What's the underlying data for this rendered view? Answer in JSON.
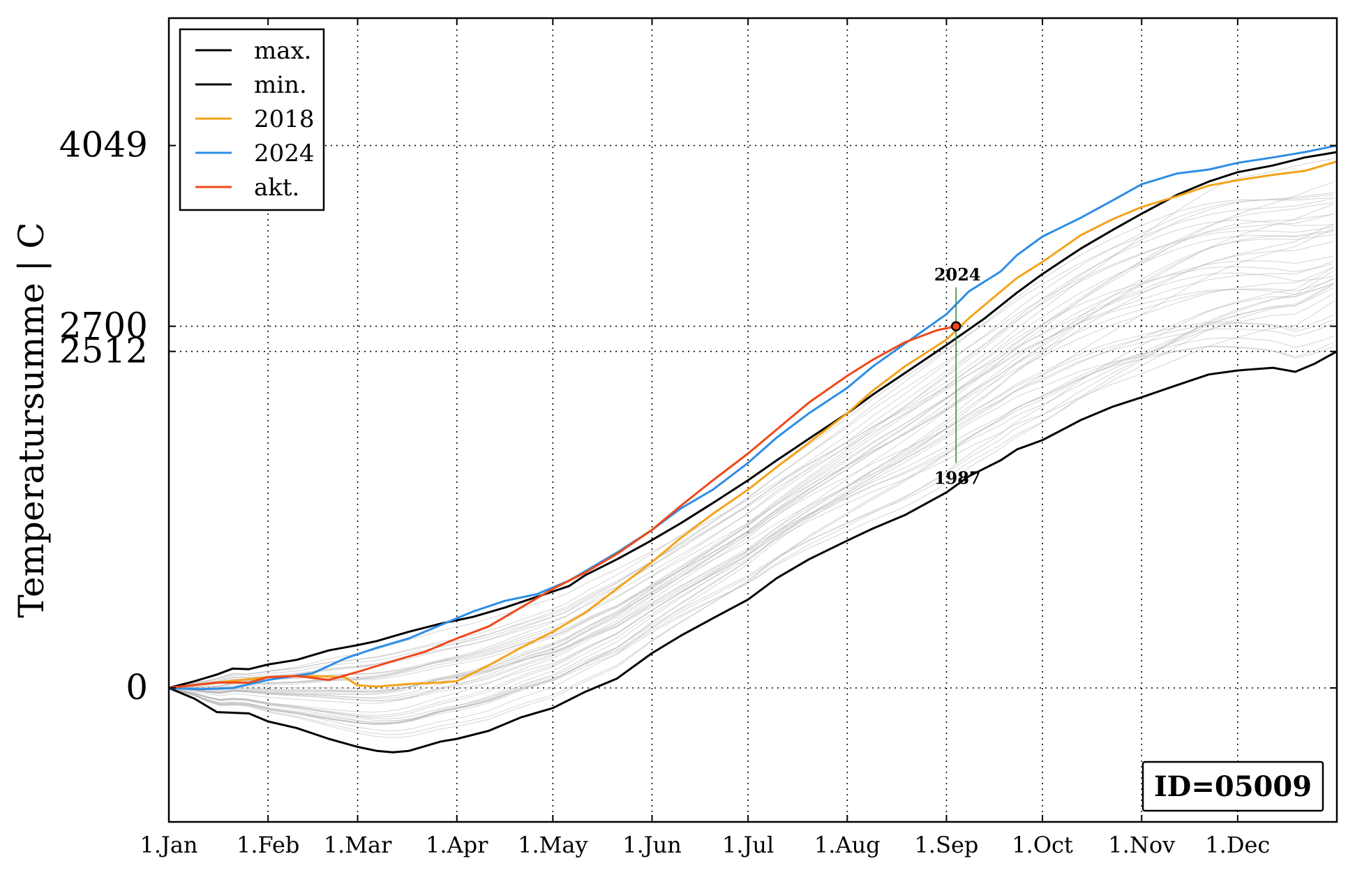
{
  "chart_data": {
    "type": "line",
    "title": "",
    "ylabel": "Temperatursumme | C",
    "xlabel": "",
    "x_tick_labels": [
      "1.Jan",
      "1.Feb",
      "1.Mar",
      "1.Apr",
      "1.May",
      "1.Jun",
      "1.Jul",
      "1.Aug",
      "1.Sep",
      "1.Oct",
      "1.Nov",
      "1.Dec"
    ],
    "x_tick_days": [
      0,
      31,
      59,
      90,
      120,
      151,
      181,
      212,
      243,
      273,
      304,
      334
    ],
    "xlim": [
      0,
      365
    ],
    "ylim": [
      -1000,
      5000
    ],
    "y_ticks": [
      0,
      2512,
      2700,
      4049
    ],
    "y_tick_labels": [
      "0",
      "2512",
      "2700",
      "4049"
    ],
    "grid": true,
    "legend_position": "top-left",
    "legend": [
      {
        "label": "max.",
        "color": "#000000"
      },
      {
        "label": "min.",
        "color": "#000000"
      },
      {
        "label": "2018",
        "color": "#f5a31a"
      },
      {
        "label": "2024",
        "color": "#2e8de6"
      },
      {
        "label": "akt.",
        "color": "#f0481a"
      }
    ],
    "series": [
      {
        "name": "max.",
        "color": "#000000",
        "points": [
          [
            0,
            0
          ],
          [
            8,
            50
          ],
          [
            15,
            100
          ],
          [
            20,
            145
          ],
          [
            25,
            140
          ],
          [
            31,
            175
          ],
          [
            40,
            210
          ],
          [
            50,
            280
          ],
          [
            59,
            320
          ],
          [
            65,
            350
          ],
          [
            75,
            420
          ],
          [
            85,
            480
          ],
          [
            95,
            530
          ],
          [
            105,
            600
          ],
          [
            115,
            680
          ],
          [
            125,
            760
          ],
          [
            130,
            840
          ],
          [
            140,
            960
          ],
          [
            150,
            1090
          ],
          [
            160,
            1230
          ],
          [
            170,
            1380
          ],
          [
            181,
            1550
          ],
          [
            190,
            1700
          ],
          [
            200,
            1860
          ],
          [
            212,
            2050
          ],
          [
            220,
            2190
          ],
          [
            230,
            2350
          ],
          [
            243,
            2560
          ],
          [
            255,
            2760
          ],
          [
            265,
            2950
          ],
          [
            273,
            3090
          ],
          [
            285,
            3280
          ],
          [
            295,
            3420
          ],
          [
            304,
            3540
          ],
          [
            315,
            3680
          ],
          [
            325,
            3780
          ],
          [
            334,
            3850
          ],
          [
            345,
            3900
          ],
          [
            355,
            3960
          ],
          [
            365,
            4000
          ]
        ]
      },
      {
        "name": "min.",
        "color": "#000000",
        "points": [
          [
            0,
            0
          ],
          [
            8,
            -80
          ],
          [
            15,
            -180
          ],
          [
            25,
            -190
          ],
          [
            31,
            -250
          ],
          [
            40,
            -300
          ],
          [
            50,
            -380
          ],
          [
            59,
            -440
          ],
          [
            65,
            -470
          ],
          [
            70,
            -480
          ],
          [
            75,
            -470
          ],
          [
            85,
            -400
          ],
          [
            90,
            -380
          ],
          [
            100,
            -320
          ],
          [
            110,
            -220
          ],
          [
            120,
            -150
          ],
          [
            130,
            -30
          ],
          [
            140,
            70
          ],
          [
            151,
            260
          ],
          [
            160,
            390
          ],
          [
            170,
            520
          ],
          [
            181,
            660
          ],
          [
            190,
            820
          ],
          [
            200,
            960
          ],
          [
            212,
            1100
          ],
          [
            220,
            1190
          ],
          [
            230,
            1290
          ],
          [
            243,
            1460
          ],
          [
            250,
            1580
          ],
          [
            260,
            1700
          ],
          [
            265,
            1780
          ],
          [
            273,
            1850
          ],
          [
            285,
            2000
          ],
          [
            295,
            2100
          ],
          [
            304,
            2170
          ],
          [
            315,
            2260
          ],
          [
            325,
            2340
          ],
          [
            334,
            2370
          ],
          [
            345,
            2390
          ],
          [
            352,
            2360
          ],
          [
            358,
            2420
          ],
          [
            365,
            2512
          ]
        ]
      },
      {
        "name": "2018",
        "color": "#f5a31a",
        "points": [
          [
            0,
            0
          ],
          [
            15,
            40
          ],
          [
            31,
            80
          ],
          [
            45,
            90
          ],
          [
            55,
            80
          ],
          [
            59,
            20
          ],
          [
            65,
            10
          ],
          [
            75,
            30
          ],
          [
            85,
            40
          ],
          [
            90,
            50
          ],
          [
            100,
            170
          ],
          [
            110,
            300
          ],
          [
            120,
            420
          ],
          [
            130,
            560
          ],
          [
            140,
            740
          ],
          [
            151,
            940
          ],
          [
            160,
            1120
          ],
          [
            170,
            1300
          ],
          [
            181,
            1480
          ],
          [
            190,
            1650
          ],
          [
            200,
            1830
          ],
          [
            212,
            2050
          ],
          [
            220,
            2220
          ],
          [
            230,
            2400
          ],
          [
            243,
            2600
          ],
          [
            250,
            2760
          ],
          [
            255,
            2860
          ],
          [
            265,
            3060
          ],
          [
            273,
            3180
          ],
          [
            285,
            3380
          ],
          [
            295,
            3500
          ],
          [
            304,
            3590
          ],
          [
            315,
            3670
          ],
          [
            325,
            3750
          ],
          [
            334,
            3790
          ],
          [
            345,
            3830
          ],
          [
            355,
            3860
          ],
          [
            365,
            3930
          ]
        ]
      },
      {
        "name": "2024",
        "color": "#2e8de6",
        "points": [
          [
            0,
            0
          ],
          [
            10,
            -10
          ],
          [
            20,
            0
          ],
          [
            31,
            60
          ],
          [
            45,
            110
          ],
          [
            55,
            220
          ],
          [
            65,
            300
          ],
          [
            75,
            370
          ],
          [
            85,
            470
          ],
          [
            95,
            570
          ],
          [
            105,
            650
          ],
          [
            115,
            700
          ],
          [
            125,
            800
          ],
          [
            130,
            870
          ],
          [
            140,
            1010
          ],
          [
            151,
            1180
          ],
          [
            160,
            1340
          ],
          [
            170,
            1480
          ],
          [
            181,
            1680
          ],
          [
            190,
            1870
          ],
          [
            200,
            2050
          ],
          [
            212,
            2240
          ],
          [
            220,
            2400
          ],
          [
            230,
            2570
          ],
          [
            243,
            2790
          ],
          [
            250,
            2960
          ],
          [
            260,
            3110
          ],
          [
            265,
            3230
          ],
          [
            273,
            3370
          ],
          [
            285,
            3510
          ],
          [
            295,
            3640
          ],
          [
            304,
            3760
          ],
          [
            315,
            3840
          ],
          [
            325,
            3870
          ],
          [
            334,
            3920
          ],
          [
            345,
            3960
          ],
          [
            355,
            4000
          ],
          [
            365,
            4049
          ]
        ]
      },
      {
        "name": "akt.",
        "color": "#f0481a",
        "points": [
          [
            0,
            0
          ],
          [
            15,
            40
          ],
          [
            25,
            40
          ],
          [
            31,
            80
          ],
          [
            40,
            90
          ],
          [
            50,
            60
          ],
          [
            59,
            120
          ],
          [
            70,
            200
          ],
          [
            80,
            270
          ],
          [
            90,
            370
          ],
          [
            100,
            460
          ],
          [
            110,
            600
          ],
          [
            120,
            740
          ],
          [
            130,
            860
          ],
          [
            140,
            1000
          ],
          [
            151,
            1180
          ],
          [
            160,
            1360
          ],
          [
            170,
            1550
          ],
          [
            181,
            1750
          ],
          [
            190,
            1930
          ],
          [
            200,
            2130
          ],
          [
            212,
            2330
          ],
          [
            220,
            2450
          ],
          [
            230,
            2580
          ],
          [
            240,
            2670
          ],
          [
            246,
            2700
          ]
        ]
      }
    ],
    "current_marker": {
      "x": 246,
      "y": 2700
    },
    "vertical_range": {
      "x": 246,
      "y_top": 2990,
      "y_bottom": 1680
    },
    "annotations": [
      {
        "text": "2024",
        "x": 246,
        "y": 2990,
        "anchor": "above"
      },
      {
        "text": "1987",
        "x": 246,
        "y": 1680,
        "anchor": "below"
      }
    ],
    "id_box": "ID=05009",
    "colors": {
      "grid": "#000000",
      "historic_lines": "#b0b0b0",
      "range_line": "#2a8a2a",
      "marker_fill": "#f0481a"
    }
  }
}
